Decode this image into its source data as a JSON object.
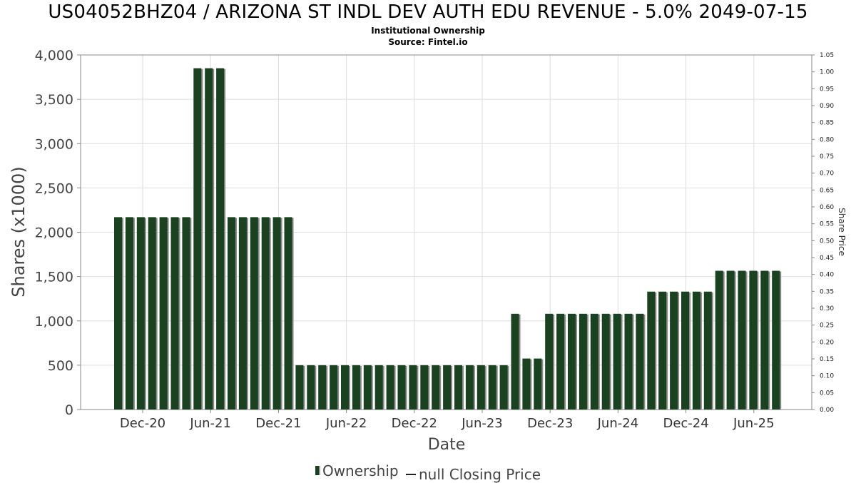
{
  "header": {
    "title": "US04052BHZ04 / ARIZONA ST INDL DEV AUTH EDU REVENUE - 5.0% 2049-07-15",
    "subtitle1": "Institutional Ownership",
    "subtitle2": "Source: Fintel.io"
  },
  "legend": {
    "ownership_label": "Ownership",
    "price_label": "null Closing Price"
  },
  "colors": {
    "bar": "#1a4220",
    "bar_shadow": "#8a8a8a",
    "grid": "#dddddd",
    "axis": "#888888"
  },
  "chart_data": {
    "type": "bar",
    "title": "US04052BHZ04 / ARIZONA ST INDL DEV AUTH EDU REVENUE - 5.0% 2049-07-15",
    "xlabel": "Date",
    "ylabel": "Shares (x1000)",
    "y2label": "Share Price",
    "ylim": [
      0,
      4000
    ],
    "y2lim": [
      0,
      1.05
    ],
    "yticks": [
      "0",
      "500",
      "1,000",
      "1,500",
      "2,000",
      "2,500",
      "3,000",
      "3,500",
      "4,000"
    ],
    "y2ticks": [
      "0.00",
      "0.05",
      "0.10",
      "0.15",
      "0.20",
      "0.25",
      "0.30",
      "0.35",
      "0.40",
      "0.45",
      "0.50",
      "0.55",
      "0.60",
      "0.65",
      "0.70",
      "0.75",
      "0.80",
      "0.85",
      "0.90",
      "0.95",
      "1.00",
      "1.05"
    ],
    "xticks": [
      "Dec-20",
      "Jun-21",
      "Dec-21",
      "Jun-22",
      "Dec-22",
      "Jun-23",
      "Dec-23",
      "Jun-24",
      "Dec-24",
      "Jun-25"
    ],
    "grid": true,
    "legend_position": "bottom",
    "series": [
      {
        "name": "Ownership",
        "values": [
          2170,
          2170,
          2170,
          2170,
          2170,
          2170,
          2170,
          3850,
          3850,
          3850,
          2170,
          2170,
          2170,
          2170,
          2170,
          2170,
          500,
          500,
          500,
          500,
          500,
          500,
          500,
          500,
          500,
          500,
          500,
          500,
          500,
          500,
          500,
          500,
          500,
          500,
          500,
          1080,
          575,
          575,
          1080,
          1080,
          1080,
          1080,
          1080,
          1080,
          1080,
          1080,
          1080,
          1330,
          1330,
          1330,
          1330,
          1330,
          1330,
          1565,
          1565,
          1565,
          1565,
          1565,
          1565
        ]
      }
    ]
  }
}
